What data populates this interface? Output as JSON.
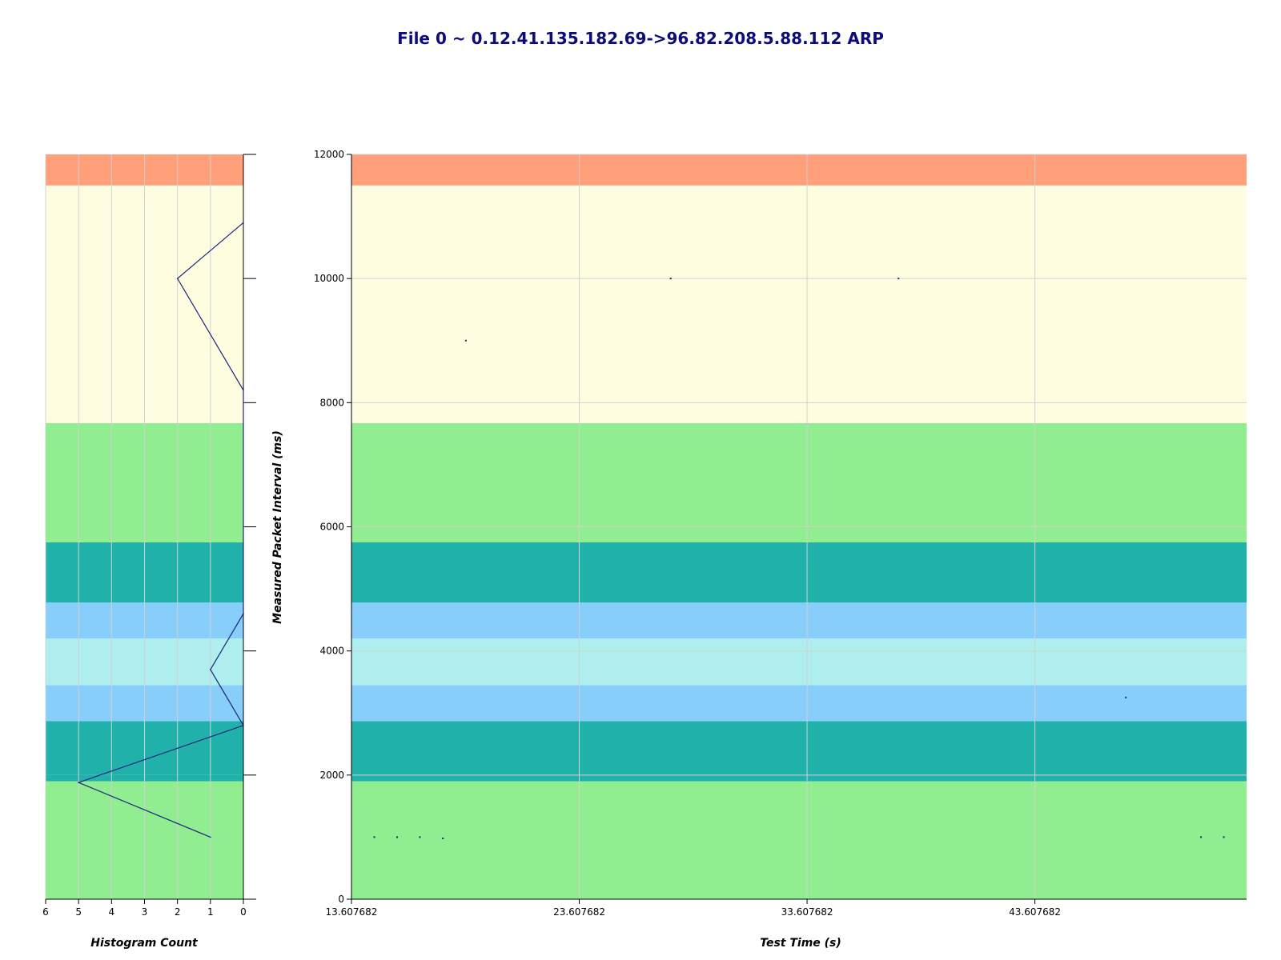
{
  "chart_data": {
    "title": "File 0 ~ 0.12.41.135.182.69->96.82.208.5.88.112 ARP",
    "colors": {
      "line": "#1a237e",
      "point": "#1a237e",
      "grid": "#d0d0d0"
    },
    "bands": [
      {
        "from": 0,
        "to": 1900,
        "color": "#90ee90"
      },
      {
        "from": 1900,
        "to": 2000,
        "color": "#20b2aa"
      },
      {
        "from": 2000,
        "to": 2870,
        "color": "#20b2aa"
      },
      {
        "from": 2870,
        "to": 3450,
        "color": "#87cefa"
      },
      {
        "from": 3450,
        "to": 4200,
        "color": "#afeeee"
      },
      {
        "from": 4200,
        "to": 4780,
        "color": "#87cefa"
      },
      {
        "from": 4780,
        "to": 5750,
        "color": "#20b2aa"
      },
      {
        "from": 5750,
        "to": 7670,
        "color": "#90ee90"
      },
      {
        "from": 7670,
        "to": 11500,
        "color": "#fffde0"
      },
      {
        "from": 11500,
        "to": 12000,
        "color": "#ffa07a"
      }
    ],
    "histogram": {
      "type": "line",
      "xlabel": "Histogram Count",
      "xlim": [
        0,
        6
      ],
      "xticks": [
        "6",
        "5",
        "4",
        "3",
        "2",
        "1",
        "0"
      ],
      "ylim": [
        0,
        12000
      ],
      "points": [
        {
          "count": 1,
          "y": 1000
        },
        {
          "count": 5,
          "y": 1880
        },
        {
          "count": 0,
          "y": 2800
        },
        {
          "count": 1,
          "y": 3700
        },
        {
          "count": 0,
          "y": 4600
        },
        {
          "count": 0,
          "y": 8200
        },
        {
          "count": 2,
          "y": 10000
        },
        {
          "count": 0,
          "y": 10900
        }
      ]
    },
    "main": {
      "type": "scatter",
      "xlabel": "Test Time (s)",
      "ylabel": "Measured Packet Interval (ms)",
      "xlim": [
        13.607682,
        52.9
      ],
      "ylim": [
        0,
        12000
      ],
      "xticks": [
        "13.607682",
        "23.607682",
        "33.607682",
        "43.607682"
      ],
      "yticks": [
        "0",
        "2000",
        "4000",
        "6000",
        "8000",
        "10000",
        "12000"
      ],
      "points": [
        {
          "x": 14.61,
          "y": 1000
        },
        {
          "x": 15.61,
          "y": 1000
        },
        {
          "x": 16.61,
          "y": 1000
        },
        {
          "x": 17.62,
          "y": 980
        },
        {
          "x": 18.63,
          "y": 9000
        },
        {
          "x": 27.62,
          "y": 10000
        },
        {
          "x": 37.62,
          "y": 10000
        },
        {
          "x": 47.6,
          "y": 3250
        },
        {
          "x": 50.9,
          "y": 1000
        },
        {
          "x": 51.9,
          "y": 1000
        }
      ]
    }
  }
}
